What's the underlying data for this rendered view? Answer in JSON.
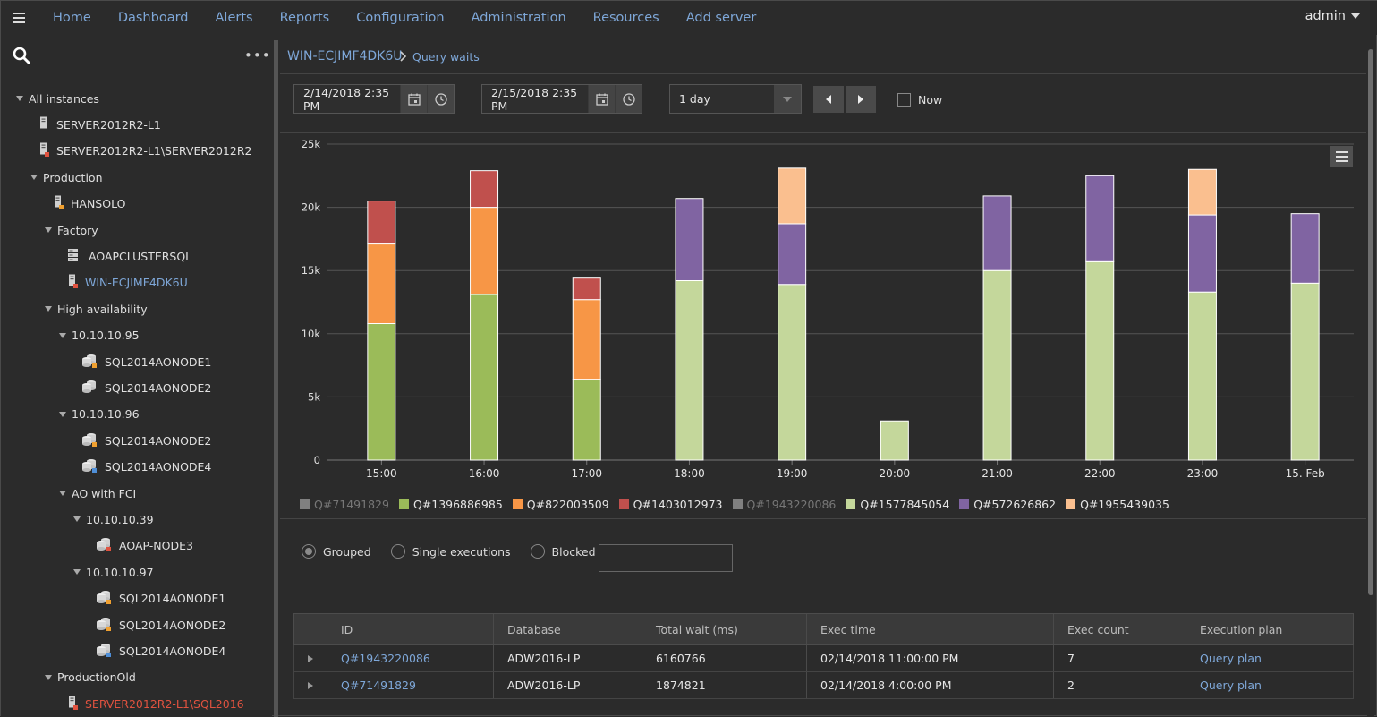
{
  "topnav": {
    "items": [
      "Home",
      "Dashboard",
      "Alerts",
      "Reports",
      "Configuration",
      "Administration",
      "Resources",
      "Add server"
    ],
    "user": "admin"
  },
  "sidebar": {
    "tree": [
      {
        "label": "All instances",
        "level": 0,
        "type": "group"
      },
      {
        "label": "SERVER2012R2-L1",
        "level": 2,
        "type": "server",
        "status": "none"
      },
      {
        "label": "SERVER2012R2-L1\\SERVER2012R2",
        "level": 2,
        "type": "server",
        "status": "red"
      },
      {
        "label": "Production",
        "level": 1,
        "type": "group"
      },
      {
        "label": "HANSOLO",
        "level": 3,
        "type": "server",
        "status": "orange"
      },
      {
        "label": "Factory",
        "level": 2,
        "type": "group"
      },
      {
        "label": "AOAPCLUSTERSQL",
        "level": 4,
        "type": "cluster",
        "status": "none"
      },
      {
        "label": "WIN-ECJIMF4DK6U",
        "level": 4,
        "type": "server",
        "status": "red",
        "selected": true
      },
      {
        "label": "High availability",
        "level": 2,
        "type": "group"
      },
      {
        "label": "10.10.10.95",
        "level": 3,
        "type": "group"
      },
      {
        "label": "SQL2014AONODE1",
        "level": 5,
        "type": "db",
        "status": "orange"
      },
      {
        "label": "SQL2014AONODE2",
        "level": 5,
        "type": "db",
        "status": "none"
      },
      {
        "label": "10.10.10.96",
        "level": 3,
        "type": "group"
      },
      {
        "label": "SQL2014AONODE2",
        "level": 5,
        "type": "db",
        "status": "orange"
      },
      {
        "label": "SQL2014AONODE4",
        "level": 5,
        "type": "db",
        "status": "blue"
      },
      {
        "label": "AO with FCI",
        "level": 3,
        "type": "group"
      },
      {
        "label": "10.10.10.39",
        "level": 4,
        "type": "group"
      },
      {
        "label": "AOAP-NODE3",
        "level": 6,
        "type": "db",
        "status": "red"
      },
      {
        "label": "10.10.10.97",
        "level": 4,
        "type": "group"
      },
      {
        "label": "SQL2014AONODE1",
        "level": 6,
        "type": "db",
        "status": "orange"
      },
      {
        "label": "SQL2014AONODE2",
        "level": 6,
        "type": "db",
        "status": "orange"
      },
      {
        "label": "SQL2014AONODE4",
        "level": 6,
        "type": "db",
        "status": "blue"
      },
      {
        "label": "ProductionOld",
        "level": 2,
        "type": "group"
      },
      {
        "label": "SERVER2012R2-L1\\SQL2016",
        "level": 4,
        "type": "server",
        "status": "red",
        "error": true
      }
    ]
  },
  "breadcrumb": {
    "instance": "WIN-ECJIMF4DK6U",
    "page": "Query waits"
  },
  "filters": {
    "from": "2/14/2018 2:35 PM",
    "to": "2/15/2018 2:35 PM",
    "range": "1 day",
    "now_label": "Now"
  },
  "chart_data": {
    "type": "bar",
    "stacked": true,
    "categories": [
      "15:00",
      "16:00",
      "17:00",
      "18:00",
      "19:00",
      "20:00",
      "21:00",
      "22:00",
      "23:00",
      "15. Feb"
    ],
    "yticks": [
      "0",
      "5k",
      "10k",
      "15k",
      "20k",
      "25k"
    ],
    "ylim": [
      0,
      25000
    ],
    "grid": true,
    "legend_position": "bottom",
    "series": [
      {
        "name": "Q#71491829",
        "color": "#808080",
        "visible": false,
        "values": [
          0,
          0,
          0,
          0,
          0,
          0,
          0,
          0,
          0,
          0
        ]
      },
      {
        "name": "Q#1396886985",
        "color": "#9bbb59",
        "visible": true,
        "values": [
          10800,
          13100,
          6400,
          0,
          0,
          0,
          0,
          0,
          0,
          0
        ]
      },
      {
        "name": "Q#822003509",
        "color": "#f79646",
        "visible": true,
        "values": [
          6300,
          6900,
          6300,
          0,
          0,
          0,
          0,
          0,
          0,
          0
        ]
      },
      {
        "name": "Q#1403012973",
        "color": "#c0504d",
        "visible": true,
        "values": [
          3400,
          2900,
          1700,
          0,
          0,
          0,
          0,
          0,
          0,
          0
        ]
      },
      {
        "name": "Q#1943220086",
        "color": "#808080",
        "visible": false,
        "values": [
          0,
          0,
          0,
          0,
          0,
          0,
          0,
          0,
          0,
          0
        ]
      },
      {
        "name": "Q#1577845054",
        "color": "#c4d79b",
        "visible": true,
        "values": [
          0,
          0,
          0,
          14200,
          13900,
          3100,
          15000,
          15700,
          13300,
          14000
        ]
      },
      {
        "name": "Q#572626862",
        "color": "#8064a2",
        "visible": true,
        "values": [
          0,
          0,
          0,
          6500,
          4800,
          0,
          5900,
          6800,
          6100,
          5500
        ]
      },
      {
        "name": "Q#1955439035",
        "color": "#fabf8f",
        "visible": true,
        "values": [
          0,
          0,
          0,
          0,
          4400,
          0,
          0,
          0,
          3600,
          0
        ]
      }
    ]
  },
  "modes": {
    "grouped": "Grouped",
    "single": "Single executions",
    "blocked": "Blocked"
  },
  "table": {
    "headers": [
      "ID",
      "Database",
      "Total wait (ms)",
      "Exec time",
      "Exec count",
      "Execution plan"
    ],
    "rows": [
      {
        "id": "Q#1943220086",
        "db": "ADW2016-LP",
        "wait": "6160766",
        "time": "02/14/2018 11:00:00 PM",
        "count": "7",
        "plan": "Query plan"
      },
      {
        "id": "Q#71491829",
        "db": "ADW2016-LP",
        "wait": "1874821",
        "time": "02/14/2018 4:00:00 PM",
        "count": "2",
        "plan": "Query plan"
      }
    ]
  }
}
